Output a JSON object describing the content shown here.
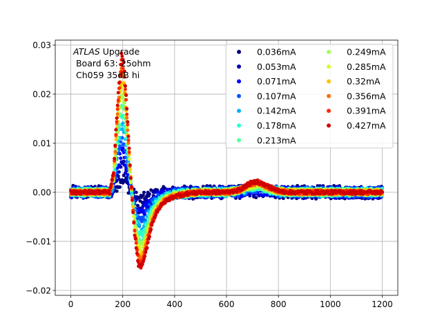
{
  "chart_data": {
    "type": "scatter",
    "title": "",
    "xlabel": "",
    "ylabel": "",
    "xlim": [
      -60,
      1260
    ],
    "ylim": [
      -0.021,
      0.031
    ],
    "xticks": [
      0,
      200,
      400,
      600,
      800,
      1000,
      1200
    ],
    "xtick_labels": [
      "0",
      "200",
      "400",
      "600",
      "800",
      "1000",
      "1200"
    ],
    "yticks": [
      -0.02,
      -0.01,
      0.0,
      0.01,
      0.02,
      0.03
    ],
    "ytick_labels": [
      "−0.02",
      "−0.01",
      "0.00",
      "0.01",
      "0.02",
      "0.03"
    ],
    "grid": true,
    "legend_position": "top-right",
    "legend_columns": 2,
    "annotation": {
      "italic": "ATLAS",
      "line1_rest": " Upgrade",
      "line2": " Board 63: 25ohm",
      "line3": " Ch059 35dB hi"
    },
    "waveform_keypoints": {
      "x": [
        0,
        150,
        165,
        180,
        195,
        205,
        215,
        230,
        245,
        260,
        275,
        290,
        310,
        330,
        360,
        400,
        450,
        500,
        600,
        650,
        690,
        720,
        760,
        800,
        840,
        880,
        1200
      ],
      "y": [
        0.0,
        0.0,
        0.004,
        0.018,
        0.028,
        0.026,
        0.018,
        0.004,
        -0.008,
        -0.0148,
        -0.0152,
        -0.012,
        -0.007,
        -0.004,
        -0.002,
        -0.0008,
        -0.0003,
        0.0,
        0.0,
        0.0005,
        0.0018,
        0.0022,
        0.0012,
        0.0003,
        0.0,
        0.0,
        0.0
      ]
    },
    "series": [
      {
        "name": "0.036mA",
        "color": "#00007f",
        "scale": 0.1
      },
      {
        "name": "0.053mA",
        "color": "#0000b2",
        "scale": 0.2
      },
      {
        "name": "0.071mA",
        "color": "#0000ff",
        "scale": 0.3
      },
      {
        "name": "0.107mA",
        "color": "#0055ff",
        "scale": 0.4
      },
      {
        "name": "0.142mA",
        "color": "#00b2ff",
        "scale": 0.5
      },
      {
        "name": "0.178mA",
        "color": "#2affd0",
        "scale": 0.58
      },
      {
        "name": "0.213mA",
        "color": "#55ff9f",
        "scale": 0.65
      },
      {
        "name": "0.249mA",
        "color": "#9fff55",
        "scale": 0.72
      },
      {
        "name": "0.285mA",
        "color": "#d0ff2a",
        "scale": 0.79
      },
      {
        "name": "0.32mA",
        "color": "#ffc400",
        "scale": 0.85
      },
      {
        "name": "0.356mA",
        "color": "#ff6c00",
        "scale": 0.9
      },
      {
        "name": "0.391mA",
        "color": "#ff2a00",
        "scale": 0.95
      },
      {
        "name": "0.427mA",
        "color": "#d00000",
        "scale": 1.0
      }
    ]
  }
}
